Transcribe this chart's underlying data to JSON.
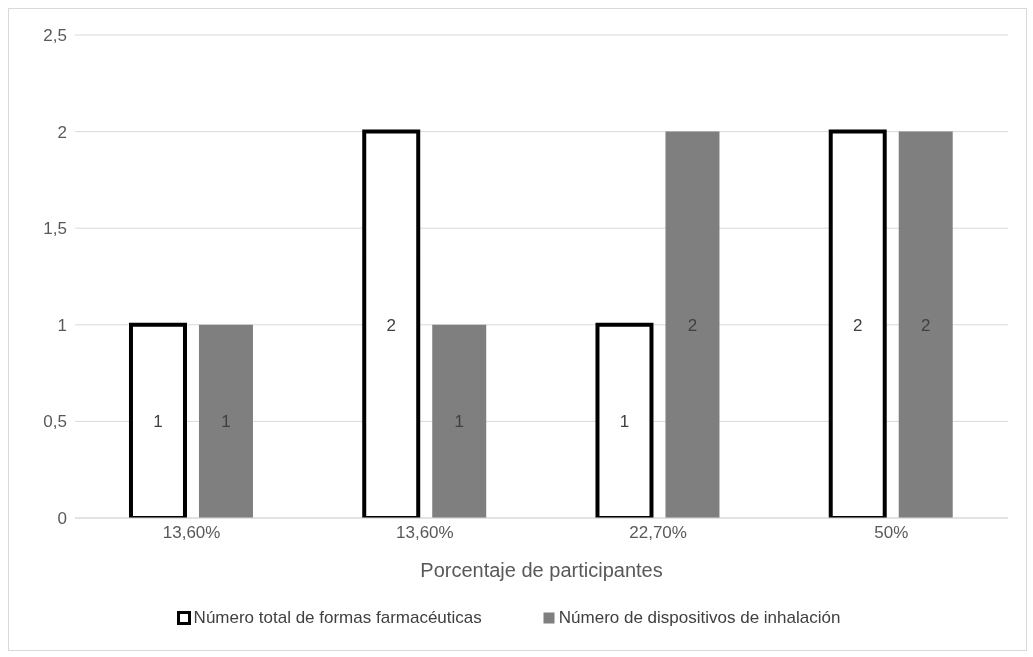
{
  "chart_data": {
    "type": "bar",
    "categories": [
      "13,60%",
      "13,60%",
      "22,70%",
      "50%"
    ],
    "series": [
      {
        "name": "Número total de formas farmacéuticas",
        "color": "#ffffff",
        "values": [
          1,
          2,
          1,
          2
        ]
      },
      {
        "name": "Número de dispositivos de inhalación",
        "color": "#7f7f7f",
        "values": [
          1,
          1,
          2,
          2
        ]
      }
    ],
    "xlabel": "Porcentaje de participantes",
    "ylim": [
      0,
      2.5
    ],
    "yticks": [
      0,
      {
        "value": 0.5,
        "label": "0,5"
      },
      1,
      {
        "value": 1.5,
        "label": "1,5"
      },
      2,
      {
        "value": 2.5,
        "label": "2,5"
      }
    ],
    "grid": "y",
    "legend": "bottom",
    "data_labels": true
  }
}
